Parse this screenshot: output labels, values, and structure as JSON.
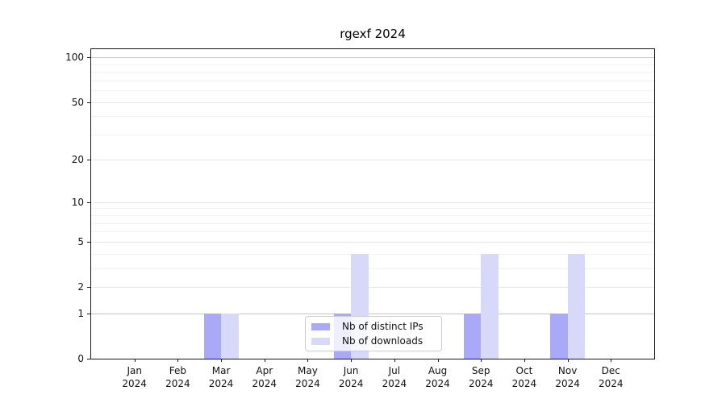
{
  "figure": {
    "background": "#ffffff"
  },
  "chart_data": {
    "type": "bar",
    "title": "rgexf 2024",
    "x": {
      "categories": [
        "Jan",
        "Feb",
        "Mar",
        "Apr",
        "May",
        "Jun",
        "Jul",
        "Aug",
        "Sep",
        "Oct",
        "Nov",
        "Dec"
      ],
      "year": "2024"
    },
    "series": [
      {
        "name": "Nb of distinct IPs",
        "color": "#a9a9f7",
        "values": [
          0,
          0,
          1,
          0,
          0,
          1,
          0,
          0,
          1,
          0,
          1,
          0
        ]
      },
      {
        "name": "Nb of downloads",
        "color": "#d8d8f8",
        "values": [
          0,
          0,
          1,
          0,
          0,
          4,
          0,
          0,
          4,
          0,
          4,
          0
        ]
      }
    ],
    "y_axis": {
      "scale": "log1p",
      "min": 0,
      "max": 113.5,
      "major_ticks": [
        0,
        1,
        2,
        5,
        10,
        20,
        50,
        100
      ],
      "minor_ticks": [
        3,
        4,
        6,
        7,
        8,
        9,
        30,
        40,
        60,
        70,
        80,
        90
      ],
      "emphasized_gridlines": [
        1,
        100
      ]
    },
    "legend": {
      "position": "lower-center",
      "labels": [
        "Nb of distinct IPs",
        "Nb of downloads"
      ]
    },
    "grid": true
  },
  "colors": {
    "bar_ips": "#a9a9f7",
    "bar_downloads": "#d8d8f8",
    "grid_major": "#e6e6e6",
    "grid_minor": "#f2f2f2",
    "grid_emphasized": "#c4c4c4",
    "axis": "#1a1a1a",
    "legend_border": "#cccccc"
  }
}
